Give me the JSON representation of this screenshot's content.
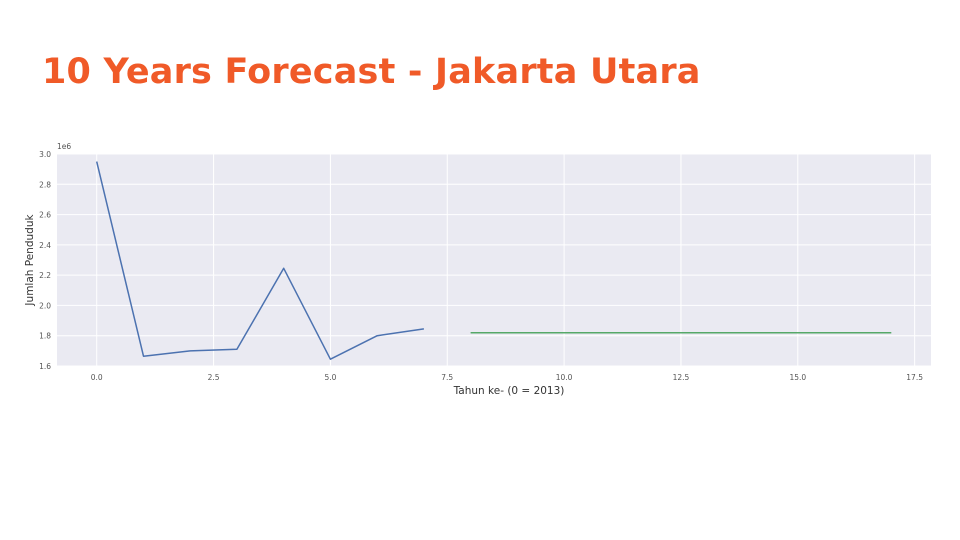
{
  "slide": {
    "title": "10 Years Forecast - Jakarta Utara"
  },
  "chart_data": {
    "type": "line",
    "title": "",
    "xlabel": "Tahun ke- (0 = 2013)",
    "ylabel": "Jumlah Penduduk",
    "y_offset_label": "1e6",
    "xlim": [
      -0.85,
      17.85
    ],
    "ylim": [
      1.6,
      3.0
    ],
    "x_ticks": [
      0.0,
      2.5,
      5.0,
      7.5,
      10.0,
      12.5,
      15.0,
      17.5
    ],
    "x_tick_labels": [
      "0.0",
      "2.5",
      "5.0",
      "7.5",
      "10.0",
      "12.5",
      "15.0",
      "17.5"
    ],
    "y_ticks": [
      1.6,
      1.8,
      2.0,
      2.2,
      2.4,
      2.6,
      2.8,
      3.0
    ],
    "y_tick_labels": [
      "1.6",
      "1.8",
      "2.0",
      "2.2",
      "2.4",
      "2.6",
      "2.8",
      "3.0"
    ],
    "grid": true,
    "background_color": "#eaeaf2",
    "grid_color": "#ffffff",
    "series": [
      {
        "color": "#4c72b0",
        "x": [
          0,
          1,
          2,
          3,
          4,
          5,
          6,
          7
        ],
        "y": [
          2.95,
          1.665,
          1.7,
          1.71,
          2.245,
          1.645,
          1.8,
          1.845
        ]
      },
      {
        "color": "#55a868",
        "x": [
          8,
          9,
          10,
          11,
          12,
          13,
          14,
          15,
          16,
          17
        ],
        "y": [
          1.82,
          1.82,
          1.82,
          1.82,
          1.82,
          1.82,
          1.82,
          1.82,
          1.82,
          1.82
        ]
      }
    ]
  }
}
